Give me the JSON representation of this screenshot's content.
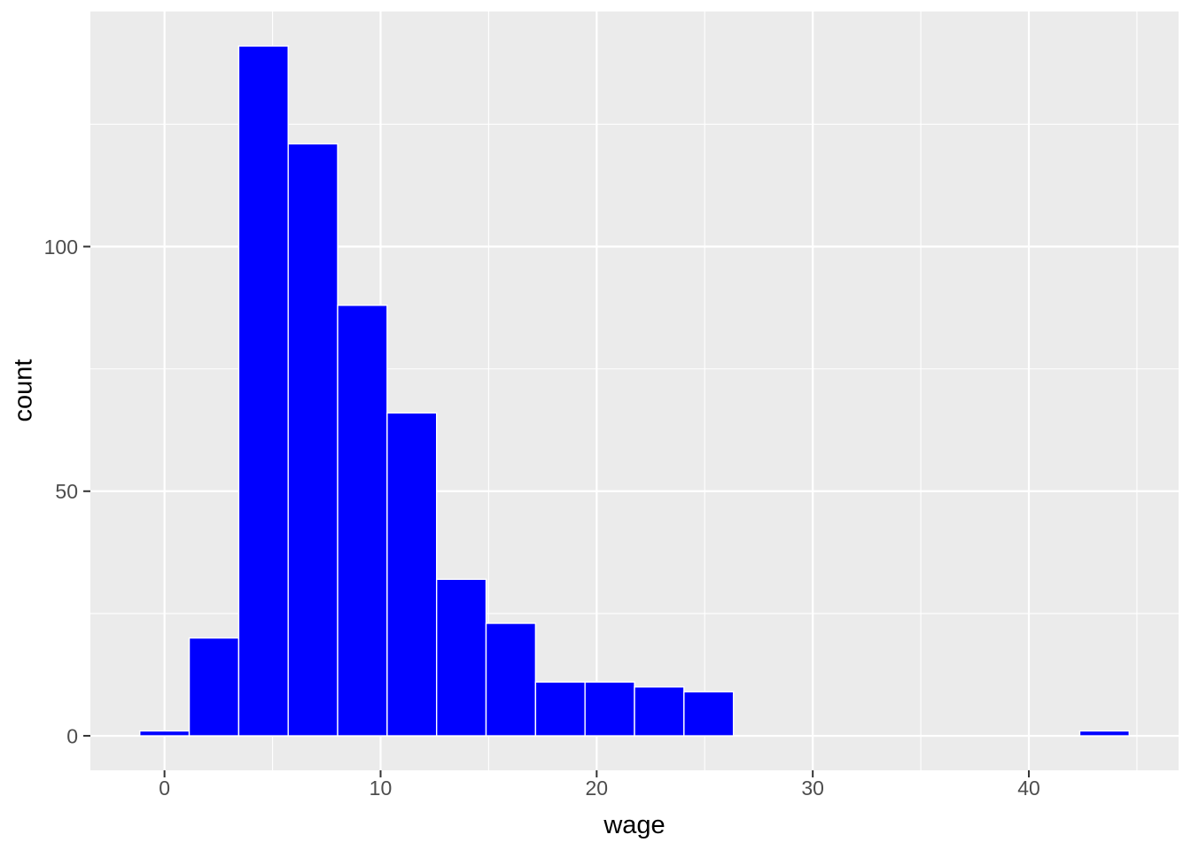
{
  "figure": {
    "background": "#FFFFFF",
    "kind": "ggplot2 histogram, theme_grey"
  },
  "chart_data": {
    "type": "bar",
    "subtype": "histogram",
    "title": "",
    "xlabel": "wage",
    "ylabel": "count",
    "legend": "none",
    "grid": "major+minor white gridlines on grey panel",
    "bin_width": 2.2895,
    "bin_centers": [
      0,
      2.2895,
      4.5789,
      6.8684,
      9.1579,
      11.4474,
      13.7368,
      16.0263,
      18.3158,
      20.6053,
      22.8947,
      25.1842,
      27.4737,
      29.7632,
      32.0526,
      34.3421,
      36.6316,
      38.9211,
      41.2105,
      43.5
    ],
    "counts": [
      1,
      20,
      141,
      121,
      88,
      66,
      32,
      23,
      11,
      11,
      10,
      9,
      0,
      0,
      0,
      0,
      0,
      0,
      0,
      1
    ],
    "x_ticks": [
      0,
      10,
      20,
      30,
      40
    ],
    "y_ticks": [
      0,
      50,
      100
    ],
    "x_minor_gridlines": [
      5,
      15,
      25,
      35,
      45
    ],
    "y_minor_gridlines": [
      25,
      75,
      125
    ],
    "xlim": [
      -3.43,
      46.93
    ],
    "ylim": [
      -7.05,
      148.05
    ],
    "colors": {
      "bar_fill": "#0000FF",
      "bar_border": "#FFFFFF",
      "panel_background": "#EBEBEB",
      "gridline": "#FFFFFF",
      "tick_label": "#4D4D4D",
      "tick_mark": "#333333",
      "axis_title": "#000000",
      "figure_background": "#FFFFFF"
    }
  }
}
